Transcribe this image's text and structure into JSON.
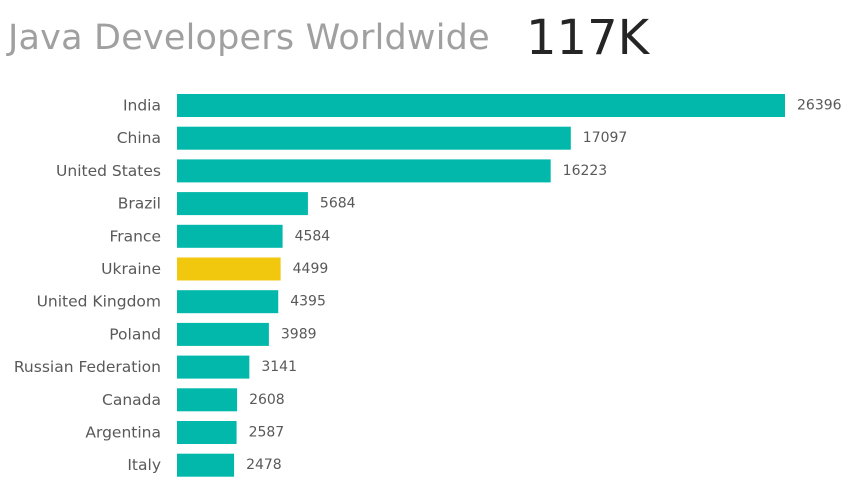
{
  "header": {
    "title": "Java Developers Worldwide",
    "kpi": "117K"
  },
  "colors": {
    "bar": "#01B8AA",
    "highlight": "#F2C80F",
    "label": "#595959"
  },
  "chart_data": {
    "type": "bar",
    "orientation": "horizontal",
    "title": "Java Developers Worldwide",
    "categories": [
      "India",
      "China",
      "United States",
      "Brazil",
      "France",
      "Ukraine",
      "United Kingdom",
      "Poland",
      "Russian Federation",
      "Canada",
      "Argentina",
      "Italy"
    ],
    "values": [
      26396,
      17097,
      16223,
      5684,
      4584,
      4499,
      4395,
      3989,
      3141,
      2608,
      2587,
      2478
    ],
    "highlight_category": "Ukraine",
    "xlim": [
      0,
      26396
    ],
    "grid": false,
    "legend": "none",
    "data_labels": true
  }
}
